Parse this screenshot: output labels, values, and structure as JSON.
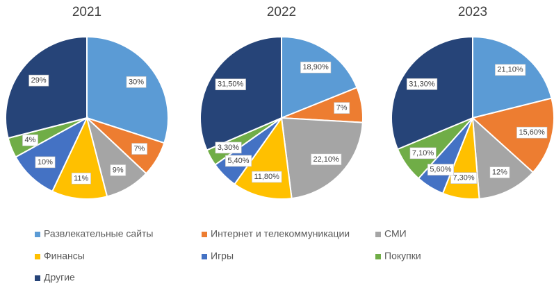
{
  "chart_data": [
    {
      "type": "pie",
      "title": "2021",
      "categories": [
        "Развлекательные сайты",
        "Интернет и телекоммуникации",
        "СМИ",
        "Финансы",
        "Игры",
        "Покупки",
        "Другие"
      ],
      "values": [
        30,
        7,
        9,
        11,
        10,
        4,
        29
      ],
      "value_labels": [
        "30%",
        "7%",
        "9%",
        "11%",
        "10%",
        "4%",
        "29%"
      ],
      "colors": [
        "#5b9bd5",
        "#ed7d31",
        "#a5a5a5",
        "#ffc000",
        "#4472c4",
        "#70ad47",
        "#264478"
      ]
    },
    {
      "type": "pie",
      "title": "2022",
      "categories": [
        "Развлекательные сайты",
        "Интернет и телекоммуникации",
        "СМИ",
        "Финансы",
        "Игры",
        "Покупки",
        "Другие"
      ],
      "values": [
        18.9,
        7,
        22.1,
        11.8,
        5.4,
        3.3,
        31.5
      ],
      "value_labels": [
        "18,90%",
        "7%",
        "22,10%",
        "11,80%",
        "5,40%",
        "3,30%",
        "31,50%"
      ],
      "colors": [
        "#5b9bd5",
        "#ed7d31",
        "#a5a5a5",
        "#ffc000",
        "#4472c4",
        "#70ad47",
        "#264478"
      ]
    },
    {
      "type": "pie",
      "title": "2023",
      "categories": [
        "Развлекательные сайты",
        "Интернет и телекоммуникации",
        "СМИ",
        "Финансы",
        "Игры",
        "Покупки",
        "Другие"
      ],
      "values": [
        21.1,
        15.6,
        12,
        7.3,
        5.6,
        7.1,
        31.3
      ],
      "value_labels": [
        "21,10%",
        "15,60%",
        "12%",
        "7,30%",
        "5,60%",
        "7,10%",
        "31,30%"
      ],
      "colors": [
        "#5b9bd5",
        "#ed7d31",
        "#a5a5a5",
        "#ffc000",
        "#4472c4",
        "#70ad47",
        "#264478"
      ]
    }
  ]
}
